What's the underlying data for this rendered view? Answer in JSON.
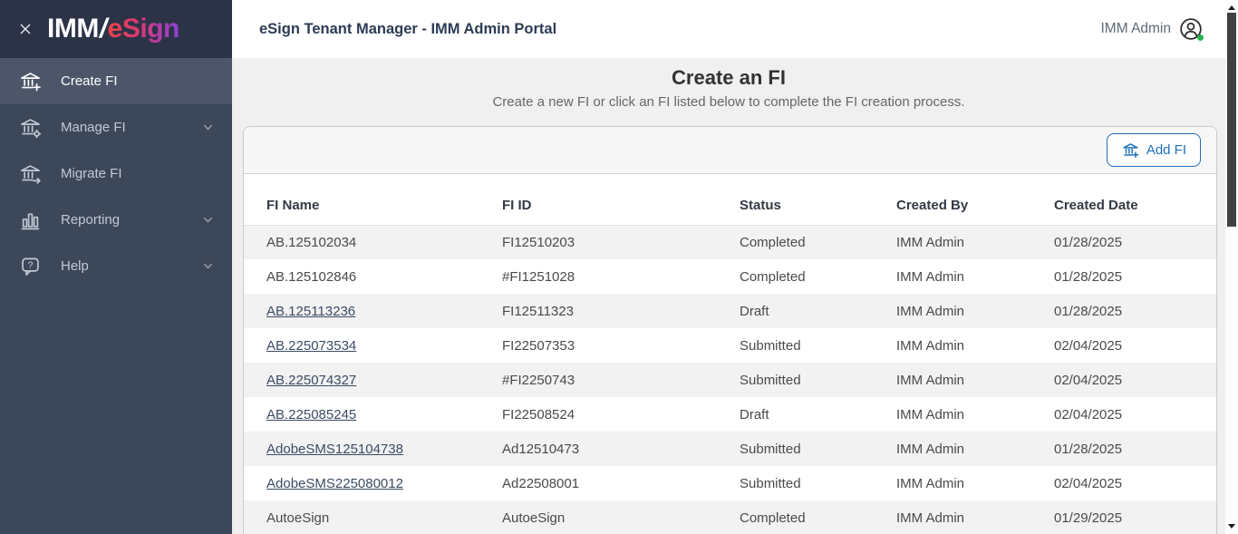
{
  "sidebar": {
    "logo": {
      "prefix": "IMM",
      "slash": "/",
      "suffix": "eSign"
    },
    "items": [
      {
        "label": "Create FI",
        "icon": "bank-plus-icon",
        "active": true,
        "chevron": false
      },
      {
        "label": "Manage FI",
        "icon": "bank-gear-icon",
        "active": false,
        "chevron": true
      },
      {
        "label": "Migrate FI",
        "icon": "bank-arrow-icon",
        "active": false,
        "chevron": false
      },
      {
        "label": "Reporting",
        "icon": "bar-chart-icon",
        "active": false,
        "chevron": true
      },
      {
        "label": "Help",
        "icon": "help-bubble-icon",
        "active": false,
        "chevron": true
      }
    ]
  },
  "header": {
    "title": "eSign Tenant Manager - IMM Admin Portal",
    "user_name": "IMM Admin",
    "user_status": "online"
  },
  "page": {
    "title": "Create an FI",
    "subtitle": "Create a new FI or click an FI listed below to complete the FI creation process.",
    "add_button_label": "Add FI"
  },
  "table": {
    "columns": [
      "FI Name",
      "FI ID",
      "Status",
      "Created By",
      "Created Date"
    ],
    "rows": [
      {
        "fi_name": "AB.125102034",
        "link": false,
        "fi_id": "FI12510203",
        "status": "Completed",
        "created_by": "IMM Admin",
        "created_date": "01/28/2025"
      },
      {
        "fi_name": "AB.125102846",
        "link": false,
        "fi_id": "#FI1251028",
        "status": "Completed",
        "created_by": "IMM Admin",
        "created_date": "01/28/2025"
      },
      {
        "fi_name": "AB.125113236",
        "link": true,
        "fi_id": "FI12511323",
        "status": "Draft",
        "created_by": "IMM Admin",
        "created_date": "01/28/2025"
      },
      {
        "fi_name": "AB.225073534",
        "link": true,
        "fi_id": "FI22507353",
        "status": "Submitted",
        "created_by": "IMM Admin",
        "created_date": "02/04/2025"
      },
      {
        "fi_name": "AB.225074327",
        "link": true,
        "fi_id": "#FI2250743",
        "status": "Submitted",
        "created_by": "IMM Admin",
        "created_date": "02/04/2025"
      },
      {
        "fi_name": "AB.225085245",
        "link": true,
        "fi_id": "FI22508524",
        "status": "Draft",
        "created_by": "IMM Admin",
        "created_date": "02/04/2025"
      },
      {
        "fi_name": "AdobeSMS125104738",
        "link": true,
        "fi_id": "Ad12510473",
        "status": "Submitted",
        "created_by": "IMM Admin",
        "created_date": "01/28/2025"
      },
      {
        "fi_name": "AdobeSMS225080012",
        "link": true,
        "fi_id": "Ad22508001",
        "status": "Submitted",
        "created_by": "IMM Admin",
        "created_date": "02/04/2025"
      },
      {
        "fi_name": "AutoeSign",
        "link": false,
        "fi_id": "AutoeSign",
        "status": "Completed",
        "created_by": "IMM Admin",
        "created_date": "01/29/2025"
      }
    ]
  },
  "colors": {
    "accent_blue": "#1d6fba",
    "sidebar_bg": "#3c4759",
    "sidebar_logo_bg": "#2c3347",
    "sidebar_active_bg": "#4d5669",
    "logo_gradient_start": "#ef4043",
    "logo_gradient_end": "#8e41d8",
    "link_color": "#3c4c63",
    "stripe_row_bg": "#f2f2f2",
    "status_dot_green": "#27b34f",
    "header_title_color": "#2c3c55"
  }
}
